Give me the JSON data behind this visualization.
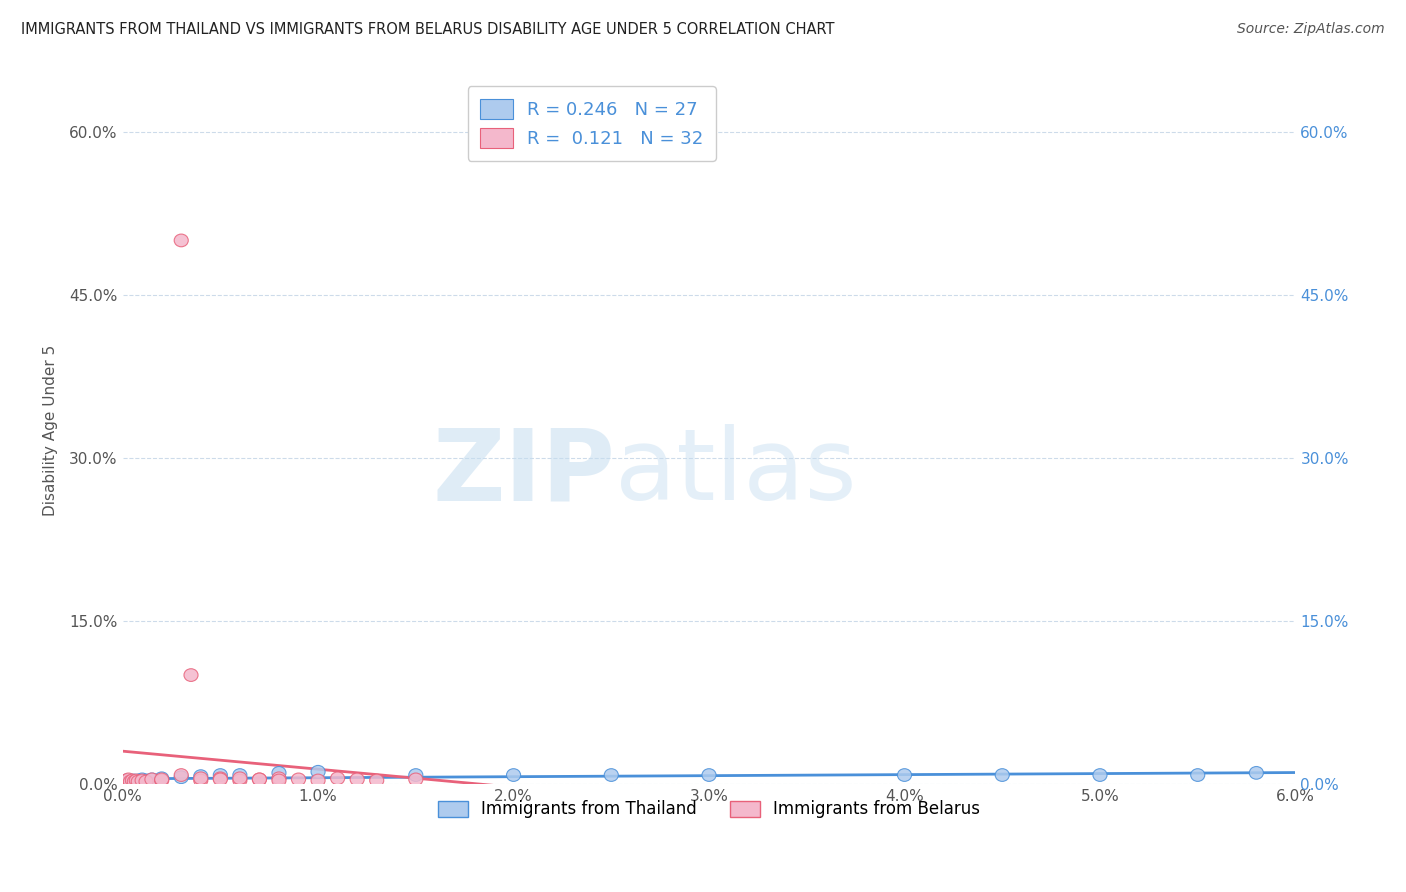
{
  "title": "IMMIGRANTS FROM THAILAND VS IMMIGRANTS FROM BELARUS DISABILITY AGE UNDER 5 CORRELATION CHART",
  "source": "Source: ZipAtlas.com",
  "ylabel": "Disability Age Under 5",
  "r_thailand": 0.246,
  "n_thailand": 27,
  "r_belarus": 0.121,
  "n_belarus": 32,
  "color_thailand": "#aecbee",
  "color_belarus": "#f4b8cc",
  "line_color_thailand": "#4a90d9",
  "line_color_belarus": "#e8617a",
  "watermark_zip": "ZIP",
  "watermark_atlas": "atlas",
  "xmin": 0.0,
  "xmax": 0.06,
  "ymin": 0.0,
  "ymax": 0.65,
  "yticks": [
    0.0,
    0.15,
    0.3,
    0.45,
    0.6
  ],
  "ytick_labels": [
    "0.0%",
    "15.0%",
    "30.0%",
    "45.0%",
    "60.0%"
  ],
  "xticks": [
    0.0,
    0.01,
    0.02,
    0.03,
    0.04,
    0.05,
    0.06
  ],
  "xtick_labels": [
    "0.0%",
    "1.0%",
    "2.0%",
    "3.0%",
    "4.0%",
    "5.0%",
    "6.0%"
  ],
  "thailand_x": [
    0.0001,
    0.0002,
    0.0003,
    0.0004,
    0.0005,
    0.0006,
    0.0007,
    0.0008,
    0.001,
    0.0012,
    0.0015,
    0.002,
    0.003,
    0.004,
    0.005,
    0.006,
    0.008,
    0.01,
    0.015,
    0.02,
    0.025,
    0.03,
    0.04,
    0.045,
    0.05,
    0.055,
    0.058
  ],
  "thailand_y": [
    0.002,
    0.003,
    0.002,
    0.003,
    0.002,
    0.003,
    0.002,
    0.003,
    0.004,
    0.003,
    0.004,
    0.005,
    0.006,
    0.007,
    0.008,
    0.008,
    0.01,
    0.011,
    0.008,
    0.008,
    0.008,
    0.008,
    0.008,
    0.008,
    0.008,
    0.008,
    0.01
  ],
  "belarus_x": [
    0.0001,
    0.0002,
    0.0003,
    0.0004,
    0.0005,
    0.0006,
    0.0007,
    0.0008,
    0.001,
    0.0012,
    0.0015,
    0.002,
    0.002,
    0.003,
    0.004,
    0.005,
    0.006,
    0.007,
    0.008,
    0.009,
    0.01,
    0.011,
    0.012,
    0.013,
    0.0035,
    0.004,
    0.005,
    0.006,
    0.007,
    0.008,
    0.003,
    0.015
  ],
  "belarus_y": [
    0.002,
    0.003,
    0.004,
    0.002,
    0.003,
    0.002,
    0.003,
    0.002,
    0.003,
    0.002,
    0.004,
    0.003,
    0.004,
    0.008,
    0.003,
    0.005,
    0.003,
    0.004,
    0.005,
    0.004,
    0.003,
    0.005,
    0.004,
    0.003,
    0.1,
    0.005,
    0.004,
    0.005,
    0.004,
    0.003,
    0.5,
    0.004
  ],
  "background_color": "#ffffff",
  "grid_color": "#c8d8e8"
}
